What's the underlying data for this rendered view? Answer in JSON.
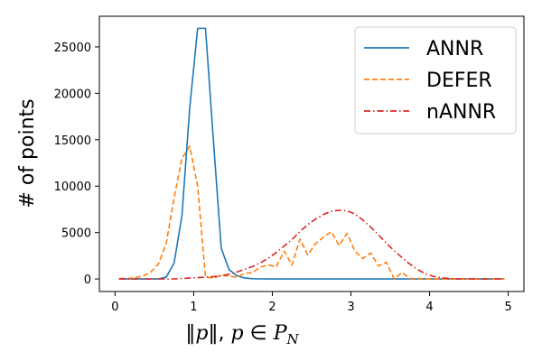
{
  "chart_data": {
    "type": "line",
    "xlabel": "‖p‖, p ∈ P_N",
    "ylabel": "# of points",
    "xlim": [
      -0.2,
      5.2
    ],
    "ylim": [
      -1350,
      28300
    ],
    "xticks": [
      0,
      1,
      2,
      3,
      4,
      5
    ],
    "yticks": [
      0,
      5000,
      10000,
      15000,
      20000,
      25000
    ],
    "grid": false,
    "legend_position": "top-right",
    "series": [
      {
        "name": "ANNR",
        "color": "#1f77b4",
        "style": "solid",
        "x": [
          0.05,
          0.15,
          0.25,
          0.35,
          0.45,
          0.55,
          0.65,
          0.75,
          0.85,
          0.95,
          1.05,
          1.15,
          1.25,
          1.35,
          1.45,
          1.55,
          1.65,
          1.75,
          1.85,
          1.95,
          2.05,
          2.15,
          2.25,
          2.35,
          2.45,
          2.55,
          2.65,
          2.75,
          2.85,
          2.95,
          3.05,
          3.15,
          3.25,
          3.35,
          3.45,
          3.55,
          3.65,
          3.75,
          3.85,
          3.95,
          4.05,
          4.15,
          4.25,
          4.35,
          4.45,
          4.55,
          4.65,
          4.75,
          4.85,
          4.95
        ],
        "values": [
          0,
          0,
          0,
          0,
          0,
          0,
          200,
          1700,
          6800,
          18500,
          27000,
          27000,
          15000,
          3300,
          1000,
          350,
          100,
          30,
          10,
          0,
          0,
          0,
          0,
          0,
          0,
          0,
          0,
          0,
          0,
          0,
          0,
          0,
          0,
          0,
          0,
          0,
          0,
          0,
          0,
          0,
          0,
          0,
          0,
          0,
          0,
          0,
          0,
          0,
          0,
          0
        ]
      },
      {
        "name": "DEFER",
        "color": "#ff7f0e",
        "style": "dashed",
        "x": [
          0.05,
          0.15,
          0.25,
          0.35,
          0.45,
          0.55,
          0.65,
          0.75,
          0.85,
          0.95,
          1.05,
          1.15,
          1.25,
          1.35,
          1.45,
          1.55,
          1.65,
          1.75,
          1.85,
          1.95,
          2.05,
          2.15,
          2.25,
          2.35,
          2.45,
          2.55,
          2.65,
          2.75,
          2.85,
          2.95,
          3.05,
          3.15,
          3.25,
          3.35,
          3.45,
          3.55,
          3.65,
          3.75,
          3.85,
          3.95,
          4.05,
          4.15,
          4.25,
          4.35,
          4.45,
          4.55,
          4.65,
          4.75,
          4.85,
          4.95
        ],
        "values": [
          50,
          50,
          150,
          300,
          700,
          1600,
          3800,
          8700,
          13000,
          14300,
          10000,
          200,
          100,
          400,
          300,
          200,
          600,
          700,
          1300,
          1500,
          1300,
          3000,
          1500,
          4300,
          2600,
          3800,
          4500,
          5100,
          3600,
          4900,
          3000,
          2200,
          2800,
          1400,
          1800,
          0,
          700,
          50,
          50,
          0,
          0,
          0,
          0,
          0,
          0,
          0,
          0,
          0,
          0,
          0
        ]
      },
      {
        "name": "nANNR",
        "color": "#d62728",
        "style": "dashdot",
        "x": [
          0.05,
          0.15,
          0.25,
          0.35,
          0.45,
          0.55,
          0.65,
          0.75,
          0.85,
          0.95,
          1.05,
          1.15,
          1.25,
          1.35,
          1.45,
          1.55,
          1.65,
          1.75,
          1.85,
          1.95,
          2.05,
          2.15,
          2.25,
          2.35,
          2.45,
          2.55,
          2.65,
          2.75,
          2.85,
          2.95,
          3.05,
          3.15,
          3.25,
          3.35,
          3.45,
          3.55,
          3.65,
          3.75,
          3.85,
          3.95,
          4.05,
          4.15,
          4.25,
          4.35,
          4.45,
          4.55,
          4.65,
          4.75,
          4.85,
          4.95
        ],
        "values": [
          0,
          0,
          0,
          0,
          0,
          0,
          0,
          0,
          50,
          100,
          150,
          200,
          250,
          350,
          500,
          750,
          1050,
          1350,
          1750,
          2250,
          2850,
          3550,
          4250,
          5100,
          5850,
          6450,
          6950,
          7300,
          7400,
          7350,
          7000,
          6350,
          5600,
          4750,
          3850,
          3050,
          2300,
          1600,
          1000,
          550,
          280,
          130,
          60,
          20,
          10,
          0,
          0,
          0,
          0,
          0
        ]
      }
    ]
  }
}
